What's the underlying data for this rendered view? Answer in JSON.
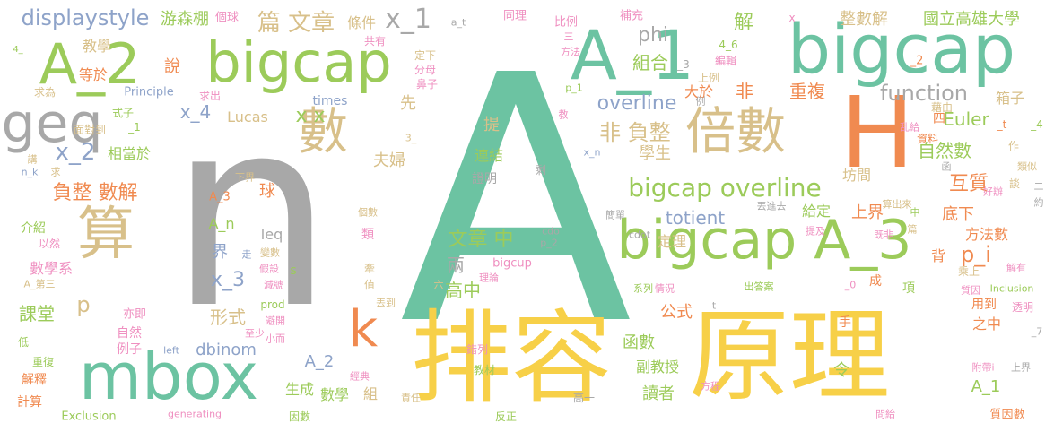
{
  "palette": {
    "green": "#6cc3a2",
    "gray": "#a8a8a8",
    "yellow": "#f7d048",
    "olive": "#9ccb5a",
    "tan": "#d8c08a",
    "orange": "#f08a50",
    "pink": "#ef8fc0",
    "blue": "#8ea3c9"
  },
  "words": [
    {
      "text": "A",
      "color": "green"
    },
    {
      "text": "n",
      "color": "gray"
    },
    {
      "text": "排容",
      "color": "yellow"
    },
    {
      "text": "原理",
      "color": "yellow"
    },
    {
      "text": "bigcap",
      "color": "green"
    },
    {
      "text": "A_1",
      "color": "green"
    },
    {
      "text": "A_2",
      "color": "olive"
    },
    {
      "text": "bigcap",
      "color": "olive"
    },
    {
      "text": "bigcap A_3",
      "color": "olive"
    },
    {
      "text": "mbox",
      "color": "green"
    },
    {
      "text": "geq",
      "color": "gray"
    },
    {
      "text": "H",
      "color": "orange"
    },
    {
      "text": "倍數",
      "color": "tan"
    },
    {
      "text": "數",
      "color": "tan"
    },
    {
      "text": "算",
      "color": "tan"
    },
    {
      "text": "k",
      "color": "orange"
    },
    {
      "text": "bigcap overline",
      "color": "olive"
    },
    {
      "text": "displaystyle",
      "color": "blue"
    },
    {
      "text": "游森棚",
      "color": "olive"
    },
    {
      "text": "個球",
      "color": "pink"
    },
    {
      "text": "篇 文章",
      "color": "tan"
    },
    {
      "text": "條件",
      "color": "tan"
    },
    {
      "text": "x_1",
      "color": "gray"
    },
    {
      "text": "a_t",
      "color": "gray"
    },
    {
      "text": "同理",
      "color": "pink"
    },
    {
      "text": "比例",
      "color": "pink"
    },
    {
      "text": "補充",
      "color": "pink"
    },
    {
      "text": "x",
      "color": "pink"
    },
    {
      "text": "整數解",
      "color": "tan"
    },
    {
      "text": "國立高雄大學",
      "color": "olive"
    },
    {
      "text": "4_",
      "color": "olive"
    },
    {
      "text": "教學",
      "color": "tan"
    },
    {
      "text": "共有",
      "color": "pink"
    },
    {
      "text": "說",
      "color": "orange"
    },
    {
      "text": "等於",
      "color": "orange"
    },
    {
      "text": "求為",
      "color": "tan"
    },
    {
      "text": "Principle",
      "color": "blue"
    },
    {
      "text": "求出",
      "color": "pink"
    },
    {
      "text": "分母",
      "color": "pink"
    },
    {
      "text": "鼻子",
      "color": "pink"
    },
    {
      "text": "phi",
      "color": "gray"
    },
    {
      "text": "定下",
      "color": "tan"
    },
    {
      "text": "組合",
      "color": "olive"
    },
    {
      "text": "_3",
      "color": "gray"
    },
    {
      "text": "上例",
      "color": "tan"
    },
    {
      "text": "4_6",
      "color": "olive"
    },
    {
      "text": "編輯",
      "color": "pink"
    },
    {
      "text": "解",
      "color": "olive"
    },
    {
      "text": "_2",
      "color": "orange"
    },
    {
      "text": "箱子",
      "color": "tan"
    },
    {
      "text": "function",
      "color": "gray"
    },
    {
      "text": "大於",
      "color": "orange"
    },
    {
      "text": "非",
      "color": "orange"
    },
    {
      "text": "重複",
      "color": "orange"
    },
    {
      "text": "先",
      "color": "tan"
    },
    {
      "text": "x_4",
      "color": "blue"
    },
    {
      "text": "times",
      "color": "blue"
    },
    {
      "text": "式子",
      "color": "olive"
    },
    {
      "text": "Lucas",
      "color": "tan"
    },
    {
      "text": "overline",
      "color": "blue"
    },
    {
      "text": "x x",
      "color": "olive"
    },
    {
      "text": "提",
      "color": "tan"
    },
    {
      "text": "_1",
      "color": "olive"
    },
    {
      "text": "藉由",
      "color": "tan"
    },
    {
      "text": "面對到",
      "color": "tan"
    },
    {
      "text": "非 負整",
      "color": "tan"
    },
    {
      "text": "學生",
      "color": "tan"
    },
    {
      "text": "四",
      "color": "orange"
    },
    {
      "text": "Euler",
      "color": "olive"
    },
    {
      "text": "_t",
      "color": "orange"
    },
    {
      "text": "_4",
      "color": "olive"
    },
    {
      "text": "自然數",
      "color": "olive"
    },
    {
      "text": "資料",
      "color": "orange"
    },
    {
      "text": "x_2",
      "color": "blue"
    },
    {
      "text": "相當於",
      "color": "olive"
    },
    {
      "text": "夫婦",
      "color": "tan"
    },
    {
      "text": "連結",
      "color": "olive"
    },
    {
      "text": "證明",
      "color": "gray"
    },
    {
      "text": "剩",
      "color": "gray"
    },
    {
      "text": "x_n",
      "color": "blue"
    },
    {
      "text": "坊間",
      "color": "tan"
    },
    {
      "text": "互質",
      "color": "orange"
    },
    {
      "text": "負整 數解",
      "color": "orange"
    },
    {
      "text": "球",
      "color": "orange"
    },
    {
      "text": "下界",
      "color": "tan"
    },
    {
      "text": "A_3",
      "color": "orange"
    },
    {
      "text": "A_n",
      "color": "olive"
    },
    {
      "text": "totient",
      "color": "blue"
    },
    {
      "text": "給定",
      "color": "olive"
    },
    {
      "text": "上界",
      "color": "orange"
    },
    {
      "text": "底下",
      "color": "orange"
    },
    {
      "text": "丟進去",
      "color": "gray"
    },
    {
      "text": "算出來",
      "color": "tan"
    },
    {
      "text": "好辦",
      "color": "pink"
    },
    {
      "text": "leq",
      "color": "gray"
    },
    {
      "text": "界",
      "color": "blue"
    },
    {
      "text": "走",
      "color": "blue"
    },
    {
      "text": "文章 中",
      "color": "olive"
    },
    {
      "text": "定理",
      "color": "tan"
    },
    {
      "text": "方法數",
      "color": "orange"
    },
    {
      "text": "介紹",
      "color": "olive"
    },
    {
      "text": "以然",
      "color": "pink"
    },
    {
      "text": "變數",
      "color": "tan"
    },
    {
      "text": "假設",
      "color": "pink"
    },
    {
      "text": "x_3",
      "color": "blue"
    },
    {
      "text": "s",
      "color": "olive"
    },
    {
      "text": "cdot",
      "color": "gray"
    },
    {
      "text": "p_2",
      "color": "gray"
    },
    {
      "text": "提及",
      "color": "pink"
    },
    {
      "text": "數學系",
      "color": "pink"
    },
    {
      "text": "減號",
      "color": "pink"
    },
    {
      "text": "bigcup",
      "color": "pink"
    },
    {
      "text": "理論",
      "color": "pink"
    },
    {
      "text": "情況",
      "color": "pink"
    },
    {
      "text": "背",
      "color": "orange"
    },
    {
      "text": "乘上",
      "color": "tan"
    },
    {
      "text": "p_i",
      "color": "orange"
    },
    {
      "text": "兩",
      "color": "gray"
    },
    {
      "text": "高中",
      "color": "olive"
    },
    {
      "text": "p",
      "color": "tan"
    },
    {
      "text": "形式",
      "color": "tan"
    },
    {
      "text": "課堂",
      "color": "olive"
    },
    {
      "text": "公式",
      "color": "orange"
    },
    {
      "text": "亦即",
      "color": "pink"
    },
    {
      "text": "prod",
      "color": "olive"
    },
    {
      "text": "避開",
      "color": "pink"
    },
    {
      "text": "自然",
      "color": "pink"
    },
    {
      "text": "小而",
      "color": "pink"
    },
    {
      "text": "函數",
      "color": "olive"
    },
    {
      "text": "用到",
      "color": "orange"
    },
    {
      "text": "透明",
      "color": "pink"
    },
    {
      "text": "之中",
      "color": "orange"
    },
    {
      "text": "Inclusion",
      "color": "olive"
    },
    {
      "text": "例子",
      "color": "pink"
    },
    {
      "text": "left",
      "color": "blue"
    },
    {
      "text": "dbinom",
      "color": "blue"
    },
    {
      "text": "A_2",
      "color": "blue"
    },
    {
      "text": "副教授",
      "color": "olive"
    },
    {
      "text": "讀者",
      "color": "olive"
    },
    {
      "text": "令",
      "color": "olive"
    },
    {
      "text": "A_1",
      "color": "olive"
    },
    {
      "text": "解釋",
      "color": "orange"
    },
    {
      "text": "經典",
      "color": "pink"
    },
    {
      "text": "生成",
      "color": "olive"
    },
    {
      "text": "數學",
      "color": "olive"
    },
    {
      "text": "組",
      "color": "tan"
    },
    {
      "text": "責任",
      "color": "tan"
    },
    {
      "text": "反正",
      "color": "olive"
    },
    {
      "text": "高一",
      "color": "gray"
    },
    {
      "text": "錯列",
      "color": "pink"
    },
    {
      "text": "教材",
      "color": "olive"
    },
    {
      "text": "方程",
      "color": "pink"
    },
    {
      "text": "質因數",
      "color": "orange"
    },
    {
      "text": "計算",
      "color": "orange"
    },
    {
      "text": "Exclusion",
      "color": "olive"
    },
    {
      "text": "generating",
      "color": "pink"
    },
    {
      "text": "因數",
      "color": "olive"
    },
    {
      "text": "問給",
      "color": "pink"
    },
    {
      "text": "重復",
      "color": "olive"
    },
    {
      "text": "低",
      "color": "olive"
    },
    {
      "text": "A_第三",
      "color": "tan"
    },
    {
      "text": "例",
      "color": "gray"
    },
    {
      "text": "n_k",
      "color": "blue"
    },
    {
      "text": "講",
      "color": "tan"
    },
    {
      "text": "求",
      "color": "tan"
    },
    {
      "text": "個數",
      "color": "tan"
    },
    {
      "text": "類",
      "color": "pink"
    },
    {
      "text": "牽",
      "color": "tan"
    },
    {
      "text": "值",
      "color": "tan"
    },
    {
      "text": "丟到",
      "color": "tan"
    },
    {
      "text": "六",
      "color": "tan"
    },
    {
      "text": "系列",
      "color": "olive"
    },
    {
      "text": "出答案",
      "color": "olive"
    },
    {
      "text": "成",
      "color": "orange"
    },
    {
      "text": "_0",
      "color": "pink"
    },
    {
      "text": "項",
      "color": "olive"
    },
    {
      "text": "手",
      "color": "orange"
    },
    {
      "text": "附帶i",
      "color": "pink"
    },
    {
      "text": "上界",
      "color": "gray"
    },
    {
      "text": "至少",
      "color": "pink"
    },
    {
      "text": "p_1",
      "color": "olive"
    },
    {
      "text": "教",
      "color": "pink"
    },
    {
      "text": "3_",
      "color": "tan"
    },
    {
      "text": "中",
      "color": "olive"
    },
    {
      "text": "簡單",
      "color": "gray"
    },
    {
      "text": "篇",
      "color": "tan"
    },
    {
      "text": "既非",
      "color": "pink"
    },
    {
      "text": "質因",
      "color": "pink"
    },
    {
      "text": "解有",
      "color": "pink"
    },
    {
      "text": "類似",
      "color": "tan"
    },
    {
      "text": "作",
      "color": "tan"
    },
    {
      "text": "談",
      "color": "tan"
    },
    {
      "text": "三",
      "color": "pink"
    },
    {
      "text": "方法",
      "color": "pink"
    },
    {
      "text": "乱給",
      "color": "pink"
    },
    {
      "text": "函",
      "color": "gray"
    },
    {
      "text": "約",
      "color": "gray"
    },
    {
      "text": "二",
      "color": "gray"
    },
    {
      "text": "cdo",
      "color": "gray"
    },
    {
      "text": "t",
      "color": "gray"
    },
    {
      "text": "_7",
      "color": "gray"
    }
  ]
}
